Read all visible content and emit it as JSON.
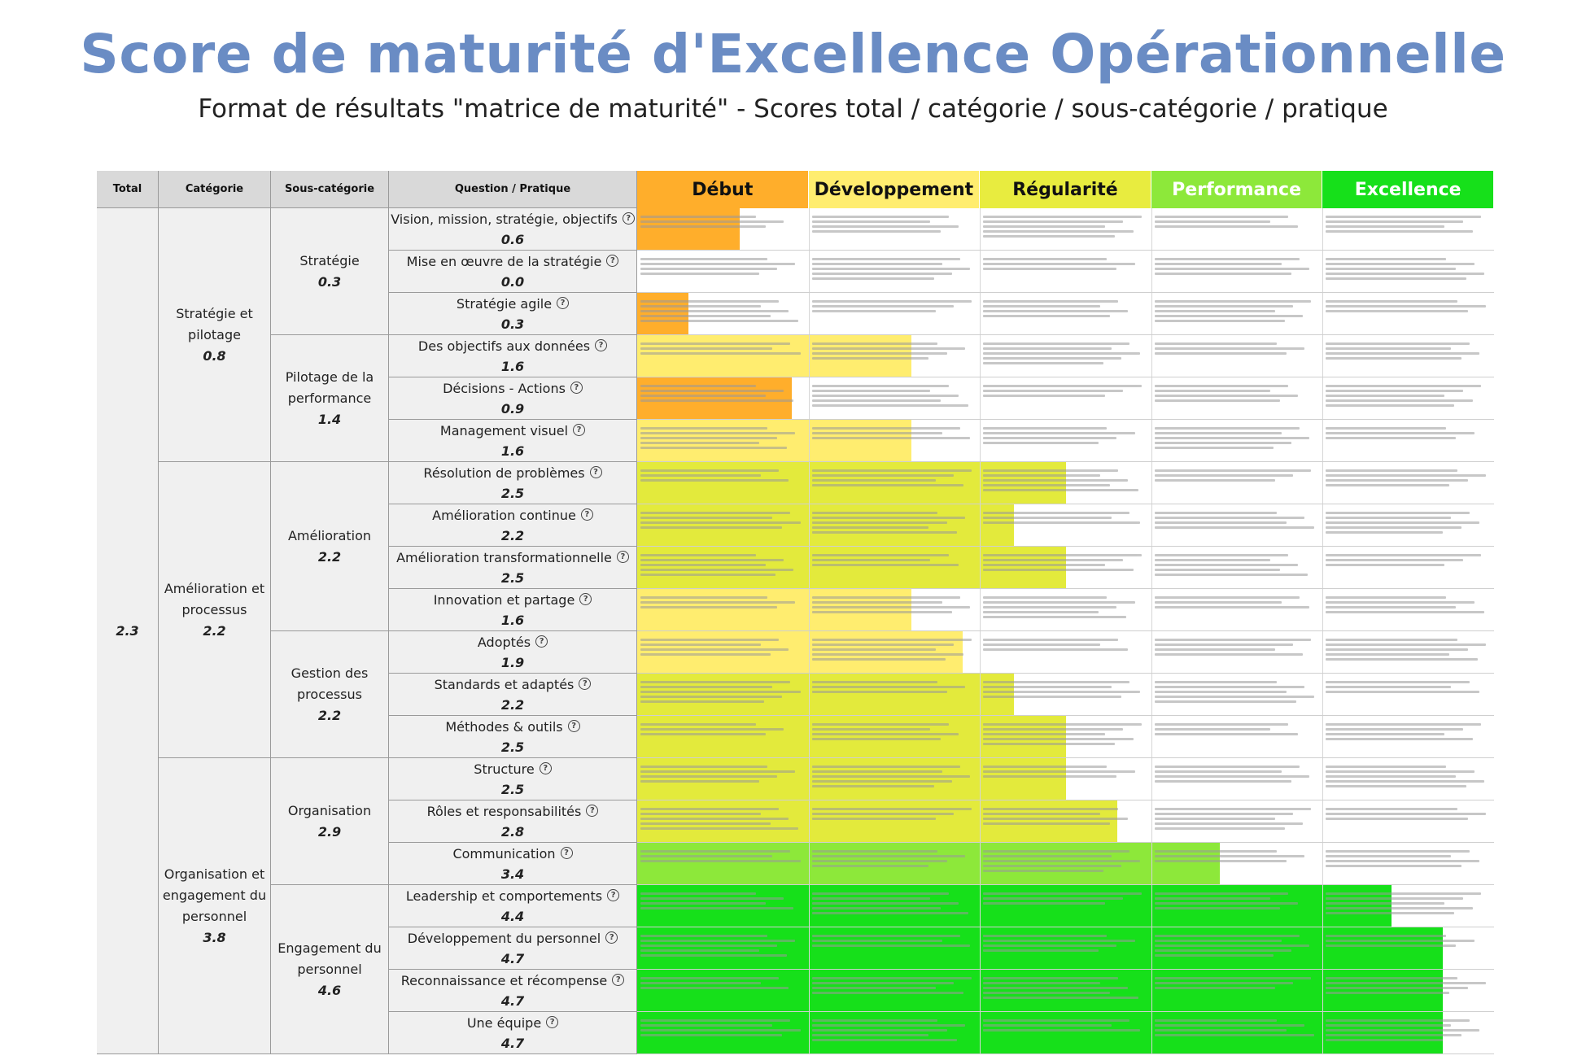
{
  "title": "Score de maturité d'Excellence Opérationnelle",
  "subtitle": "Format de résultats \"matrice de maturité\" - Scores total / catégorie / sous-catégorie / pratique",
  "headers": {
    "total": "Total",
    "category": "Catégorie",
    "subcategory": "Sous-catégorie",
    "question": "Question / Pratique"
  },
  "levels": [
    {
      "label": "Début",
      "bg": "#ffae2b",
      "fg": "#111111"
    },
    {
      "label": "Développement",
      "bg": "#ffed6f",
      "fg": "#111111"
    },
    {
      "label": "Régularité",
      "bg": "#e8ec3f",
      "fg": "#111111"
    },
    {
      "label": "Performance",
      "bg": "#8de83a",
      "fg": "#ffffff"
    },
    {
      "label": "Excellence",
      "bg": "#16e01a",
      "fg": "#ffffff"
    }
  ],
  "total": {
    "score": "2.3"
  },
  "categories": [
    {
      "name_lines": [
        "Stratégie et",
        "pilotage"
      ],
      "score": "0.8"
    },
    {
      "name_lines": [
        "Amélioration et",
        "processus"
      ],
      "score": "2.2"
    },
    {
      "name_lines": [
        "Organisation et",
        "engagement du",
        "personnel"
      ],
      "score": "3.8"
    }
  ],
  "subcategories": [
    {
      "name_lines": [
        "Stratégie"
      ],
      "score": "0.3"
    },
    {
      "name_lines": [
        "Pilotage de la",
        "performance"
      ],
      "score": "1.4"
    },
    {
      "name_lines": [
        "Amélioration"
      ],
      "score": "2.2"
    },
    {
      "name_lines": [
        "Gestion des",
        "processus"
      ],
      "score": "2.2"
    },
    {
      "name_lines": [
        "Organisation"
      ],
      "score": "2.9"
    },
    {
      "name_lines": [
        "Engagement du",
        "personnel"
      ],
      "score": "4.6"
    }
  ],
  "questions": [
    {
      "label": "Vision, mission, stratégie, objectifs",
      "score": "0.6",
      "value": 0.6,
      "color": "#ffae2b"
    },
    {
      "label": "Mise en œuvre de la stratégie",
      "score": "0.0",
      "value": 0.0,
      "color": "#ffae2b"
    },
    {
      "label": "Stratégie agile",
      "score": "0.3",
      "value": 0.3,
      "color": "#ffae2b"
    },
    {
      "label": "Des objectifs aux données",
      "score": "1.6",
      "value": 1.6,
      "color": "#ffed6f"
    },
    {
      "label": "Décisions - Actions",
      "score": "0.9",
      "value": 0.9,
      "color": "#ffae2b"
    },
    {
      "label": "Management visuel",
      "score": "1.6",
      "value": 1.6,
      "color": "#ffed6f"
    },
    {
      "label": "Résolution de problèmes",
      "score": "2.5",
      "value": 2.5,
      "color": "#e3ea3c"
    },
    {
      "label": "Amélioration continue",
      "score": "2.2",
      "value": 2.2,
      "color": "#e3ea3c"
    },
    {
      "label": "Amélioration transformationnelle",
      "score": "2.5",
      "value": 2.5,
      "color": "#e3ea3c"
    },
    {
      "label": "Innovation et partage",
      "score": "1.6",
      "value": 1.6,
      "color": "#ffed6f"
    },
    {
      "label": "Adoptés",
      "score": "1.9",
      "value": 1.9,
      "color": "#ffed6f"
    },
    {
      "label": "Standards et adaptés",
      "score": "2.2",
      "value": 2.2,
      "color": "#e3ea3c"
    },
    {
      "label": "Méthodes & outils",
      "score": "2.5",
      "value": 2.5,
      "color": "#e3ea3c"
    },
    {
      "label": "Structure",
      "score": "2.5",
      "value": 2.5,
      "color": "#e3ea3c"
    },
    {
      "label": "Rôles et responsabilités",
      "score": "2.8",
      "value": 2.8,
      "color": "#e3ea3c"
    },
    {
      "label": "Communication",
      "score": "3.4",
      "value": 3.4,
      "color": "#8de83a"
    },
    {
      "label": "Leadership et comportements",
      "score": "4.4",
      "value": 4.4,
      "color": "#16e01a"
    },
    {
      "label": "Développement du personnel",
      "score": "4.7",
      "value": 4.7,
      "color": "#16e01a"
    },
    {
      "label": "Reconnaissance et récompense",
      "score": "4.7",
      "value": 4.7,
      "color": "#16e01a"
    },
    {
      "label": "Une équipe",
      "score": "4.7",
      "value": 4.7,
      "color": "#16e01a"
    }
  ]
}
